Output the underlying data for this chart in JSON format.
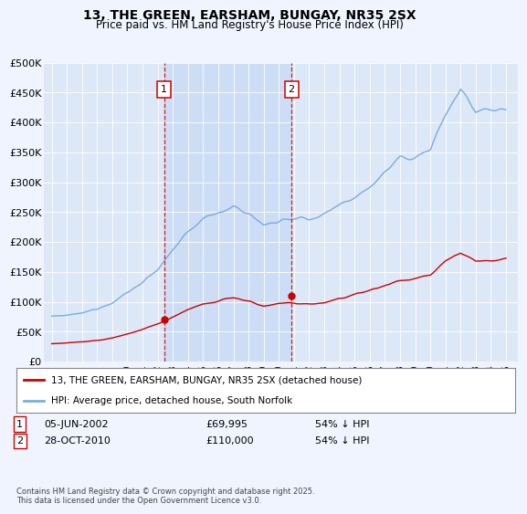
{
  "title": "13, THE GREEN, EARSHAM, BUNGAY, NR35 2SX",
  "subtitle": "Price paid vs. HM Land Registry's House Price Index (HPI)",
  "background_color": "#f0f4ff",
  "plot_bg_color": "#dce8f8",
  "ylim": [
    0,
    500000
  ],
  "yticks": [
    0,
    50000,
    100000,
    150000,
    200000,
    250000,
    300000,
    350000,
    400000,
    450000,
    500000
  ],
  "ytick_labels": [
    "£0",
    "£50K",
    "£100K",
    "£150K",
    "£200K",
    "£250K",
    "£300K",
    "£350K",
    "£400K",
    "£450K",
    "£500K"
  ],
  "hpi_color": "#7aacdc",
  "price_color": "#cc0000",
  "vline_color": "#cc0000",
  "shade_color": "#ccddf5",
  "legend_label_price": "13, THE GREEN, EARSHAM, BUNGAY, NR35 2SX (detached house)",
  "legend_label_hpi": "HPI: Average price, detached house, South Norfolk",
  "footnote": "Contains HM Land Registry data © Crown copyright and database right 2025.\nThis data is licensed under the Open Government Licence v3.0.",
  "sale1_x": 2002.42,
  "sale1_price": 69995,
  "sale2_x": 2010.83,
  "sale2_price": 110000,
  "xlim_left": 1994.5,
  "xlim_right": 2025.8,
  "xtick_years": [
    1995,
    1996,
    1997,
    1998,
    1999,
    2000,
    2001,
    2002,
    2003,
    2004,
    2005,
    2006,
    2007,
    2008,
    2009,
    2010,
    2011,
    2012,
    2013,
    2014,
    2015,
    2016,
    2017,
    2018,
    2019,
    2020,
    2021,
    2022,
    2023,
    2024,
    2025
  ]
}
